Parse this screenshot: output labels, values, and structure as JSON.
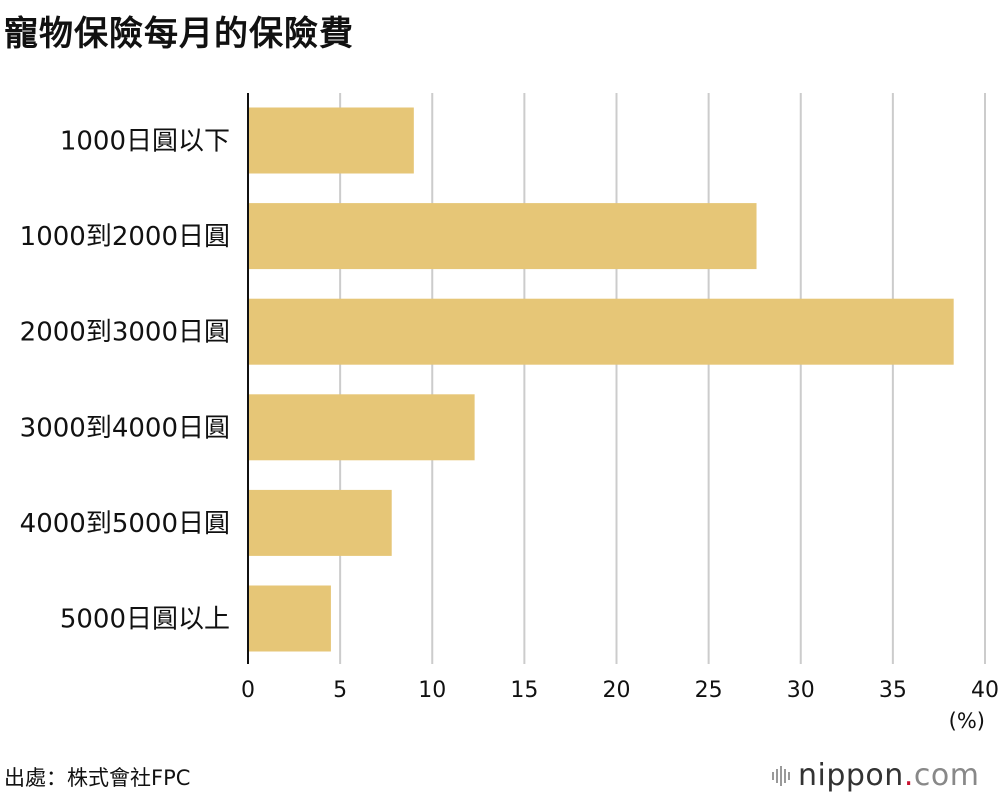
{
  "title": "寵物保險每月的保險費",
  "source": "出處：株式會社FPC",
  "logo": {
    "main": "nippon",
    "dot": ".",
    "tail": "com"
  },
  "colors": {
    "bar": "#e6c677",
    "grid": "#cccccc",
    "axis": "#111111"
  },
  "chart_data": {
    "type": "bar",
    "orientation": "horizontal",
    "categories": [
      "1000日圓以下",
      "1000到2000日圓",
      "2000到3000日圓",
      "3000到4000日圓",
      "4000到5000日圓",
      "5000日圓以上"
    ],
    "values": [
      9.0,
      27.6,
      38.3,
      12.3,
      7.8,
      4.5
    ],
    "xlim": [
      0,
      40
    ],
    "xticks": [
      0,
      5,
      10,
      15,
      20,
      25,
      30,
      35,
      40
    ],
    "unit_label": "(%)",
    "grid": true
  }
}
